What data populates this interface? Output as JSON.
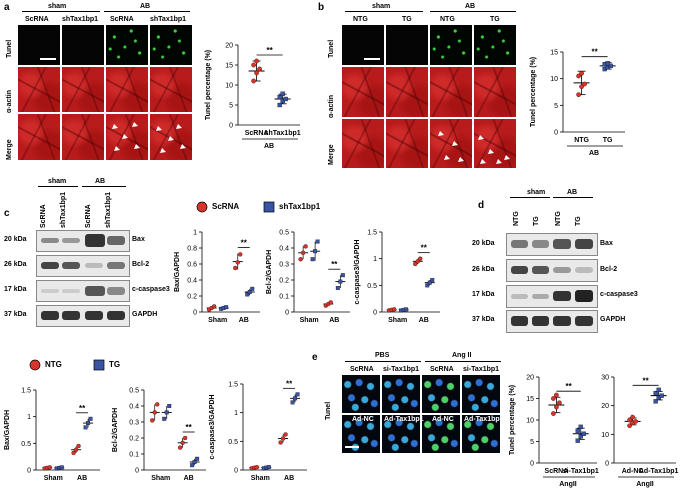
{
  "panel_letters": {
    "a": "a",
    "b": "b",
    "c": "c",
    "d": "d",
    "e": "e"
  },
  "panel_a": {
    "groups": [
      "sham",
      "AB"
    ],
    "columns": [
      "ScRNA",
      "shTax1bp1",
      "ScRNA",
      "shTax1bp1"
    ],
    "rows": [
      "Tunel",
      "α-actin",
      "Merge"
    ]
  },
  "panel_b": {
    "groups": [
      "sham",
      "AB"
    ],
    "columns": [
      "NTG",
      "TG",
      "NTG",
      "TG"
    ],
    "rows": [
      "Tunel",
      "α-actin",
      "Merge"
    ]
  },
  "blot_c": {
    "groups": [
      "sham",
      "AB"
    ],
    "lanes": [
      "ScRNA",
      "shTax1bp1",
      "ScRNA",
      "shTax1bp1"
    ],
    "kda": [
      "20 kDa",
      "26 kDa",
      "17 kDa",
      "37 kDa"
    ],
    "proteins": [
      "Bax",
      "Bcl-2",
      "c-caspase3",
      "GAPDH"
    ]
  },
  "blot_d": {
    "groups": [
      "sham",
      "AB"
    ],
    "lanes": [
      "NTG",
      "TG",
      "NTG",
      "TG"
    ],
    "kda": [
      "20 kDa",
      "26 kDa",
      "17 kDa",
      "37 kDa"
    ],
    "proteins": [
      "Bax",
      "Bcl-2",
      "c-caspase3",
      "GAPDH"
    ]
  },
  "legend_c": {
    "a": "ScRNA",
    "b": "shTax1bp1"
  },
  "legend_d": {
    "a": "NTG",
    "b": "TG"
  },
  "panel_e": {
    "groups": [
      "PBS",
      "Ang II"
    ],
    "columns": [
      "ScRNA",
      "si-Tax1bp1",
      "ScRNA",
      "si-Tax1bp1"
    ],
    "columns2": [
      "Ad-NC",
      "Ad-Tax1bp1",
      "Ad-NC",
      "Ad-Tax1bp1"
    ],
    "row": "Tunel"
  },
  "colors": {
    "red": "#d9342b",
    "blue": "#3a54a4",
    "dark_red": "#b81b1b"
  },
  "chart_data": [
    {
      "id": "a_tunel",
      "type": "scatter",
      "ylabel": "Tunel percentage (%)",
      "ylim": [
        0,
        20
      ],
      "yticks": [
        0,
        5,
        10,
        15,
        20
      ],
      "categories": [
        "ScRNA",
        "shTax1bp1"
      ],
      "group": "AB",
      "sig": "**",
      "series": [
        {
          "name": "ScRNA",
          "mean": 13.5,
          "sd": 2.5,
          "points": [
            11,
            13,
            14,
            15,
            16
          ]
        },
        {
          "name": "shTax1bp1",
          "mean": 6.5,
          "sd": 1.2,
          "points": [
            5,
            6,
            6.5,
            7,
            7.8
          ]
        }
      ]
    },
    {
      "id": "b_tunel",
      "type": "scatter",
      "ylabel": "Tunel percentage (%)",
      "ylim": [
        0,
        15
      ],
      "yticks": [
        0,
        5,
        10,
        15
      ],
      "categories": [
        "NTG",
        "TG"
      ],
      "group": "AB",
      "sig": "**",
      "series": [
        {
          "name": "NTG",
          "mean": 9.2,
          "sd": 2.2,
          "points": [
            7,
            8.5,
            9,
            10.5,
            11
          ]
        },
        {
          "name": "TG",
          "mean": 12.4,
          "sd": 0.6,
          "points": [
            11.8,
            12.1,
            12.4,
            12.7,
            12.9
          ]
        }
      ]
    },
    {
      "id": "c_bax",
      "type": "scatter",
      "ylabel": "Bax/GAPDH",
      "ylim": [
        0,
        1.0
      ],
      "yticks": [
        0,
        0.2,
        0.4,
        0.6,
        0.8,
        1.0
      ],
      "categories": [
        "Sham",
        "AB"
      ],
      "sig": "**",
      "series": [
        {
          "name": "ScRNA",
          "means": [
            0.05,
            0.63
          ],
          "sds": [
            0.02,
            0.1
          ],
          "points": [
            [
              0.03,
              0.05,
              0.07
            ],
            [
              0.55,
              0.62,
              0.72
            ]
          ]
        },
        {
          "name": "shTax1bp1",
          "means": [
            0.05,
            0.25
          ],
          "sds": [
            0.02,
            0.04
          ],
          "points": [
            [
              0.04,
              0.05,
              0.06
            ],
            [
              0.22,
              0.25,
              0.29
            ]
          ]
        }
      ]
    },
    {
      "id": "c_bcl2",
      "type": "scatter",
      "ylabel": "Bcl-2/GAPDH",
      "ylim": [
        0,
        0.5
      ],
      "yticks": [
        0,
        0.1,
        0.2,
        0.3,
        0.4,
        0.5
      ],
      "categories": [
        "Sham",
        "AB"
      ],
      "sig": "**",
      "series": [
        {
          "name": "ScRNA",
          "means": [
            0.37,
            0.05
          ],
          "sds": [
            0.04,
            0.01
          ],
          "points": [
            [
              0.33,
              0.37,
              0.41
            ],
            [
              0.04,
              0.05,
              0.06
            ]
          ]
        },
        {
          "name": "shTax1bp1",
          "means": [
            0.38,
            0.19
          ],
          "sds": [
            0.06,
            0.04
          ],
          "points": [
            [
              0.33,
              0.38,
              0.44
            ],
            [
              0.15,
              0.19,
              0.23
            ]
          ]
        }
      ]
    },
    {
      "id": "c_casp",
      "type": "scatter",
      "ylabel": "c-caspase3/GAPDH",
      "ylim": [
        0,
        1.5
      ],
      "yticks": [
        0,
        0.5,
        1.0,
        1.5
      ],
      "categories": [
        "Sham",
        "AB"
      ],
      "sig": "**",
      "series": [
        {
          "name": "ScRNA",
          "means": [
            0.04,
            0.95
          ],
          "sds": [
            0.02,
            0.05
          ],
          "points": [
            [
              0.03,
              0.04,
              0.05
            ],
            [
              0.9,
              0.95,
              1.0
            ]
          ]
        },
        {
          "name": "shTax1bp1",
          "means": [
            0.04,
            0.55
          ],
          "sds": [
            0.02,
            0.05
          ],
          "points": [
            [
              0.03,
              0.04,
              0.05
            ],
            [
              0.5,
              0.55,
              0.6
            ]
          ]
        }
      ]
    },
    {
      "id": "d_bax",
      "type": "scatter",
      "ylabel": "Bax/GAPDH",
      "ylim": [
        0,
        1.5
      ],
      "yticks": [
        0,
        0.5,
        1.0,
        1.5
      ],
      "categories": [
        "Sham",
        "AB"
      ],
      "sig": "**",
      "series": [
        {
          "name": "NTG",
          "means": [
            0.04,
            0.38
          ],
          "sds": [
            0.02,
            0.06
          ],
          "points": [
            [
              0.03,
              0.04,
              0.05
            ],
            [
              0.32,
              0.38,
              0.45
            ]
          ]
        },
        {
          "name": "TG",
          "means": [
            0.04,
            0.88
          ],
          "sds": [
            0.02,
            0.08
          ],
          "points": [
            [
              0.03,
              0.04,
              0.05
            ],
            [
              0.8,
              0.88,
              0.96
            ]
          ]
        }
      ]
    },
    {
      "id": "d_bcl2",
      "type": "scatter",
      "ylabel": "Bcl-2/GAPDH",
      "ylim": [
        0,
        0.5
      ],
      "yticks": [
        0,
        0.1,
        0.2,
        0.3,
        0.4,
        0.5
      ],
      "categories": [
        "Sham",
        "AB"
      ],
      "sig": "**",
      "series": [
        {
          "name": "NTG",
          "means": [
            0.36,
            0.17
          ],
          "sds": [
            0.05,
            0.03
          ],
          "points": [
            [
              0.31,
              0.36,
              0.41
            ],
            [
              0.14,
              0.17,
              0.2
            ]
          ]
        },
        {
          "name": "TG",
          "means": [
            0.36,
            0.05
          ],
          "sds": [
            0.04,
            0.02
          ],
          "points": [
            [
              0.32,
              0.36,
              0.4
            ],
            [
              0.03,
              0.05,
              0.07
            ]
          ]
        }
      ]
    },
    {
      "id": "d_casp",
      "type": "scatter",
      "ylabel": "c-caspase3/GAPDH",
      "ylim": [
        0,
        1.5
      ],
      "yticks": [
        0,
        0.5,
        1.0,
        1.5
      ],
      "categories": [
        "Sham",
        "AB"
      ],
      "sig": "**",
      "series": [
        {
          "name": "NTG",
          "means": [
            0.04,
            0.55
          ],
          "sds": [
            0.02,
            0.07
          ],
          "points": [
            [
              0.03,
              0.04,
              0.05
            ],
            [
              0.48,
              0.55,
              0.62
            ]
          ]
        },
        {
          "name": "TG",
          "means": [
            0.04,
            1.25
          ],
          "sds": [
            0.02,
            0.07
          ],
          "points": [
            [
              0.03,
              0.04,
              0.05
            ],
            [
              1.18,
              1.25,
              1.32
            ]
          ]
        }
      ]
    },
    {
      "id": "e_si",
      "type": "scatter",
      "ylabel": "Tunel percentage (%)",
      "ylim": [
        0,
        20
      ],
      "yticks": [
        0,
        5,
        10,
        15,
        20
      ],
      "categories": [
        "ScRNA",
        "si-Tax1bp1"
      ],
      "group": "AngII",
      "sig": "**",
      "series": [
        {
          "name": "ScRNA",
          "mean": 13.5,
          "sd": 1.8,
          "points": [
            11.5,
            13,
            14,
            15,
            15.8
          ]
        },
        {
          "name": "si-Tax1bp1",
          "mean": 6.8,
          "sd": 1.3,
          "points": [
            5.2,
            6.2,
            6.8,
            7.5,
            8.4
          ]
        }
      ]
    },
    {
      "id": "e_ad",
      "type": "scatter",
      "ylabel": "",
      "ylim": [
        0,
        30
      ],
      "yticks": [
        0,
        10,
        20,
        30
      ],
      "categories": [
        "Ad-NC",
        "Ad-Tax1bp1"
      ],
      "group": "AngII",
      "sig": "**",
      "series": [
        {
          "name": "Ad-NC",
          "mean": 14.5,
          "sd": 1.2,
          "points": [
            13,
            14,
            14.5,
            15,
            16
          ]
        },
        {
          "name": "Ad-Tax1bp1",
          "mean": 23.5,
          "sd": 1.5,
          "points": [
            21.5,
            22.8,
            23.5,
            24.3,
            25.5
          ]
        }
      ]
    }
  ]
}
